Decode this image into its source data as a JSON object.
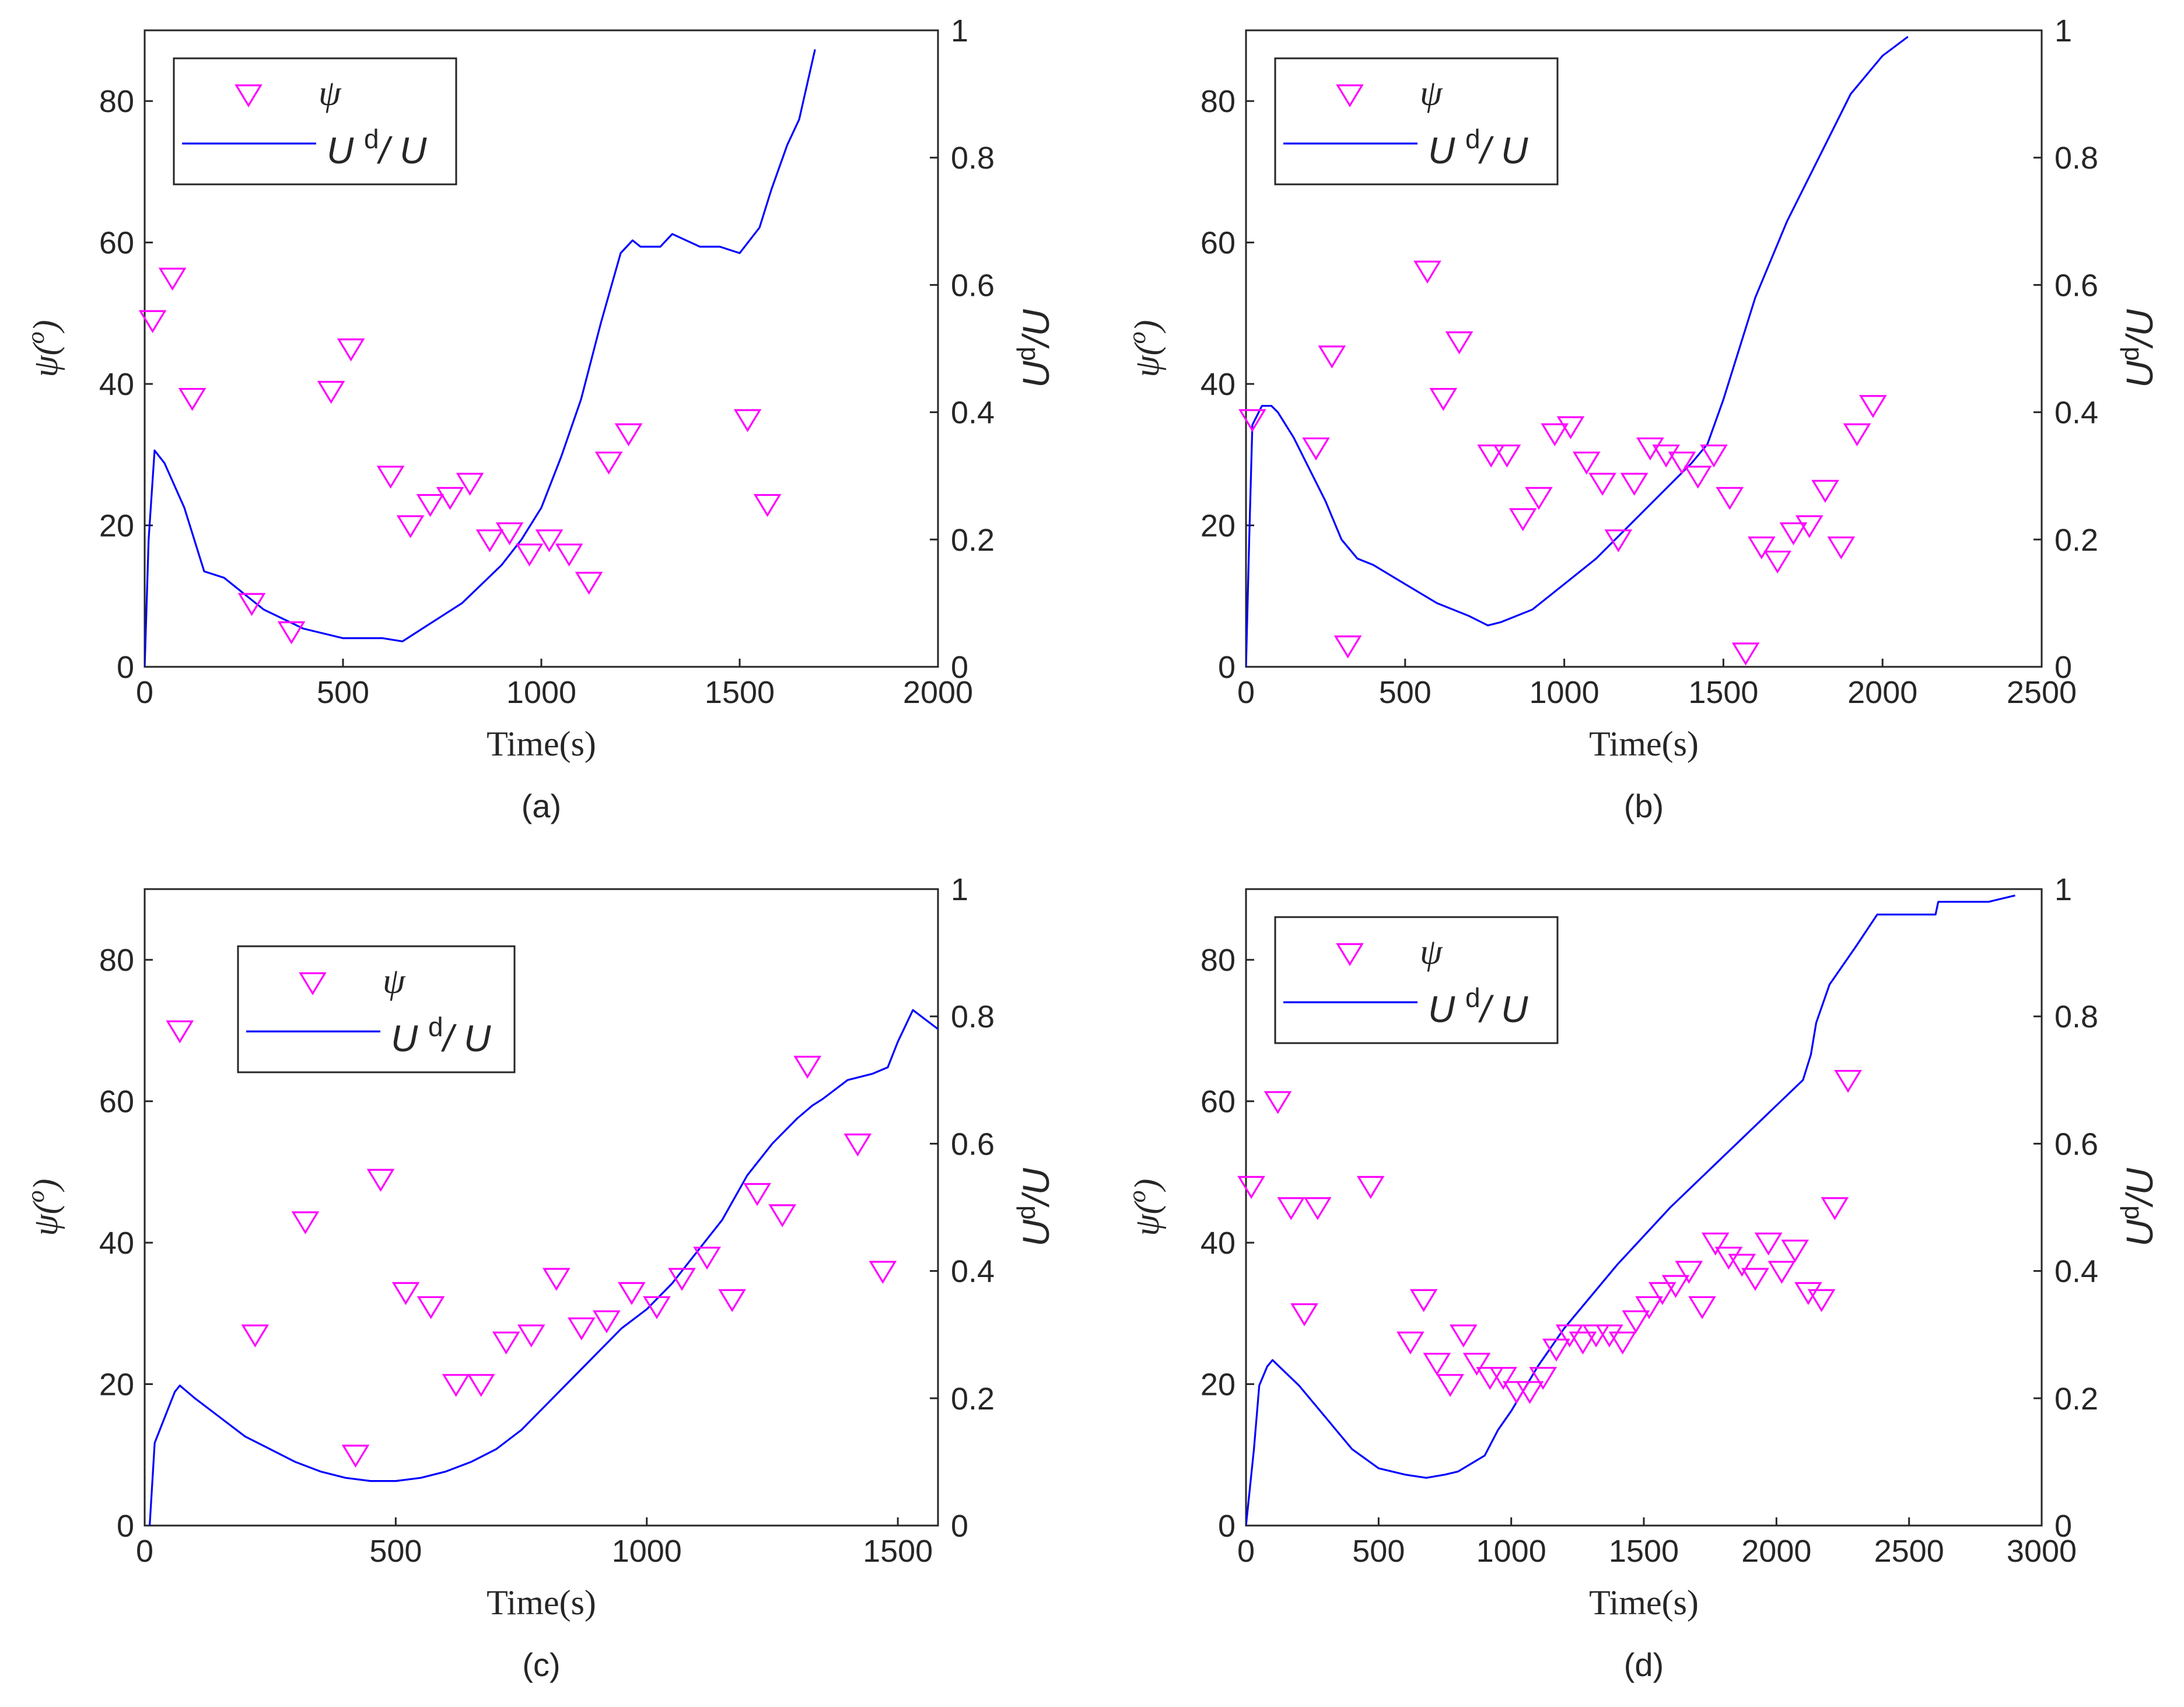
{
  "chart_data": [
    {
      "type": "scatter",
      "caption": "(a)",
      "xlabel": "Time(s)",
      "ylabel_left": "ψ(o)",
      "ylabel_right": "Ud/U",
      "xlim": [
        0,
        2000
      ],
      "xticks": [
        0,
        500,
        1000,
        1500,
        2000
      ],
      "ylim_left": [
        0,
        90
      ],
      "yticks_left": [
        0,
        20,
        40,
        60,
        80
      ],
      "ylim_right": [
        0,
        1
      ],
      "yticks_right": [
        0,
        0.2,
        0.4,
        0.6,
        0.8,
        1
      ],
      "legend_position": "top-left",
      "series": [
        {
          "name": "ψ",
          "kind": "scatter",
          "axis": "left",
          "marker": "triangle-down",
          "color": "#ff00ff",
          "x": [
            20,
            70,
            120,
            270,
            370,
            470,
            520,
            620,
            670,
            720,
            770,
            820,
            870,
            920,
            970,
            1020,
            1070,
            1120,
            1170,
            1220,
            1520,
            1570
          ],
          "y": [
            49,
            55,
            38,
            9,
            5,
            39,
            45,
            27,
            20,
            23,
            24,
            26,
            18,
            19,
            16,
            18,
            16,
            12,
            29,
            33,
            35,
            23
          ]
        },
        {
          "name": "Ud/U",
          "kind": "line",
          "axis": "right",
          "color": "#0000ff",
          "x": [
            0,
            10,
            25,
            50,
            100,
            150,
            200,
            300,
            400,
            500,
            600,
            650,
            700,
            750,
            800,
            850,
            900,
            950,
            1000,
            1050,
            1100,
            1150,
            1200,
            1230,
            1250,
            1300,
            1330,
            1400,
            1450,
            1500,
            1550,
            1580,
            1620,
            1650,
            1690
          ],
          "y": [
            0,
            0.2,
            0.34,
            0.32,
            0.25,
            0.15,
            0.14,
            0.09,
            0.06,
            0.045,
            0.045,
            0.04,
            0.06,
            0.08,
            0.1,
            0.13,
            0.16,
            0.2,
            0.25,
            0.33,
            0.42,
            0.54,
            0.65,
            0.67,
            0.66,
            0.66,
            0.68,
            0.66,
            0.66,
            0.65,
            0.69,
            0.75,
            0.82,
            0.86,
            0.97
          ]
        }
      ]
    },
    {
      "type": "scatter",
      "caption": "(b)",
      "xlabel": "Time(s)",
      "ylabel_left": "ψ(o)",
      "ylabel_right": "Ud/U",
      "xlim": [
        0,
        2500
      ],
      "xticks": [
        0,
        500,
        1000,
        1500,
        2000,
        2500
      ],
      "ylim_left": [
        0,
        90
      ],
      "yticks_left": [
        0,
        20,
        40,
        60,
        80
      ],
      "ylim_right": [
        0,
        1
      ],
      "yticks_right": [
        0,
        0.2,
        0.4,
        0.6,
        0.8,
        1
      ],
      "legend_position": "top-left",
      "series": [
        {
          "name": "ψ",
          "kind": "scatter",
          "axis": "right",
          "marker": "triangle-down",
          "color": "#ff00ff",
          "note_axis": "left",
          "x": [
            20,
            220,
            270,
            320,
            570,
            620,
            670,
            770,
            820,
            870,
            920,
            970,
            1020,
            1070,
            1120,
            1170,
            1220,
            1270,
            1320,
            1370,
            1420,
            1470,
            1520,
            1570,
            1620,
            1670,
            1720,
            1770,
            1820,
            1870,
            1920,
            1970
          ],
          "y": [
            35,
            31,
            44,
            3,
            56,
            38,
            46,
            30,
            30,
            21,
            24,
            33,
            34,
            29,
            26,
            18,
            26,
            31,
            30,
            29,
            27,
            30,
            24,
            2,
            17,
            15,
            19,
            20,
            25,
            17,
            33,
            37
          ]
        },
        {
          "name": "Ud/U",
          "kind": "line",
          "axis": "right",
          "color": "#0000ff",
          "x": [
            0,
            10,
            20,
            50,
            80,
            100,
            150,
            200,
            250,
            300,
            350,
            400,
            500,
            600,
            700,
            760,
            800,
            900,
            1000,
            1100,
            1200,
            1300,
            1400,
            1450,
            1500,
            1550,
            1600,
            1700,
            1800,
            1900,
            2000,
            2080
          ],
          "y": [
            0,
            0.2,
            0.38,
            0.41,
            0.41,
            0.4,
            0.36,
            0.31,
            0.26,
            0.2,
            0.17,
            0.16,
            0.13,
            0.1,
            0.08,
            0.065,
            0.07,
            0.09,
            0.13,
            0.17,
            0.22,
            0.27,
            0.32,
            0.35,
            0.42,
            0.5,
            0.58,
            0.7,
            0.8,
            0.9,
            0.96,
            0.99
          ]
        }
      ]
    },
    {
      "type": "scatter",
      "caption": "(c)",
      "xlabel": "Time(s)",
      "ylabel_left": "ψ(o)",
      "ylabel_right": "Ud/U",
      "xlim": [
        0,
        1580
      ],
      "xticks": [
        0,
        500,
        1000,
        1500
      ],
      "ylim_left": [
        0,
        90
      ],
      "yticks_left": [
        0,
        20,
        40,
        60,
        80
      ],
      "ylim_right": [
        0,
        1
      ],
      "yticks_right": [
        0,
        0.2,
        0.4,
        0.6,
        0.8,
        1
      ],
      "legend_position": "top-center",
      "series": [
        {
          "name": "ψ",
          "kind": "scatter",
          "axis": "left",
          "marker": "triangle-down",
          "color": "#ff00ff",
          "x": [
            70,
            220,
            320,
            420,
            470,
            520,
            570,
            620,
            670,
            720,
            770,
            820,
            870,
            920,
            970,
            1020,
            1070,
            1120,
            1170,
            1220,
            1270,
            1320,
            1420,
            1470
          ],
          "y": [
            70,
            27,
            43,
            10,
            49,
            33,
            31,
            20,
            20,
            26,
            27,
            35,
            28,
            29,
            33,
            31,
            35,
            38,
            32,
            47,
            44,
            65,
            54,
            36
          ]
        },
        {
          "name": "Ud/U",
          "kind": "line",
          "axis": "right",
          "color": "#0000ff",
          "x": [
            10,
            20,
            40,
            60,
            70,
            100,
            150,
            200,
            250,
            300,
            350,
            400,
            450,
            500,
            550,
            600,
            650,
            700,
            750,
            800,
            850,
            900,
            950,
            1000,
            1050,
            1100,
            1150,
            1200,
            1250,
            1300,
            1330,
            1350,
            1400,
            1450,
            1480,
            1500,
            1530,
            1580
          ],
          "y": [
            0,
            0.13,
            0.17,
            0.21,
            0.22,
            0.2,
            0.17,
            0.14,
            0.12,
            0.1,
            0.085,
            0.075,
            0.07,
            0.07,
            0.075,
            0.085,
            0.1,
            0.12,
            0.15,
            0.19,
            0.23,
            0.27,
            0.31,
            0.34,
            0.38,
            0.43,
            0.48,
            0.55,
            0.6,
            0.64,
            0.66,
            0.67,
            0.7,
            0.71,
            0.72,
            0.76,
            0.81,
            0.78
          ]
        }
      ]
    },
    {
      "type": "scatter",
      "caption": "(d)",
      "xlabel": "Time(s)",
      "ylabel_left": "ψ(o)",
      "ylabel_right": "Ud/U",
      "xlim": [
        0,
        3000
      ],
      "xticks": [
        0,
        500,
        1000,
        1500,
        2000,
        2500,
        3000
      ],
      "ylim_left": [
        0,
        90
      ],
      "yticks_left": [
        0,
        20,
        40,
        60,
        80
      ],
      "ylim_right": [
        0,
        1
      ],
      "yticks_right": [
        0,
        0.2,
        0.4,
        0.6,
        0.8,
        1
      ],
      "legend_position": "top-left",
      "series": [
        {
          "name": "ψ",
          "kind": "scatter",
          "axis": "left",
          "marker": "triangle-down",
          "color": "#ff00ff",
          "x": [
            20,
            120,
            170,
            220,
            270,
            470,
            620,
            670,
            720,
            770,
            820,
            870,
            920,
            970,
            1020,
            1070,
            1120,
            1170,
            1220,
            1270,
            1320,
            1370,
            1420,
            1470,
            1520,
            1570,
            1620,
            1670,
            1720,
            1770,
            1820,
            1870,
            1920,
            1970,
            2020,
            2070,
            2120,
            2170,
            2220,
            2270
          ],
          "y": [
            48,
            60,
            45,
            30,
            45,
            48,
            26,
            32,
            23,
            20,
            27,
            23,
            21,
            21,
            19,
            19,
            21,
            25,
            27,
            26,
            27,
            27,
            26,
            29,
            31,
            33,
            34,
            36,
            31,
            40,
            38,
            37,
            35,
            40,
            36,
            39,
            33,
            32,
            45,
            63
          ]
        },
        {
          "name": "Ud/U",
          "kind": "line",
          "axis": "right",
          "color": "#0000ff",
          "x": [
            0,
            30,
            50,
            80,
            100,
            150,
            200,
            300,
            400,
            500,
            600,
            680,
            750,
            800,
            900,
            950,
            1000,
            1100,
            1200,
            1400,
            1600,
            1800,
            2000,
            2100,
            2130,
            2150,
            2200,
            2300,
            2380,
            2500,
            2600,
            2610,
            2800,
            2900
          ],
          "y": [
            0,
            0.12,
            0.22,
            0.25,
            0.26,
            0.24,
            0.22,
            0.17,
            0.12,
            0.09,
            0.08,
            0.075,
            0.08,
            0.085,
            0.11,
            0.15,
            0.18,
            0.25,
            0.31,
            0.41,
            0.5,
            0.58,
            0.66,
            0.7,
            0.74,
            0.79,
            0.85,
            0.91,
            0.96,
            0.96,
            0.96,
            0.98,
            0.98,
            0.99
          ]
        }
      ]
    }
  ],
  "legend": {
    "psi_label": "ψ",
    "ratio_label": "U",
    "ratio_sup": "d",
    "ratio_tail": "/ U"
  }
}
